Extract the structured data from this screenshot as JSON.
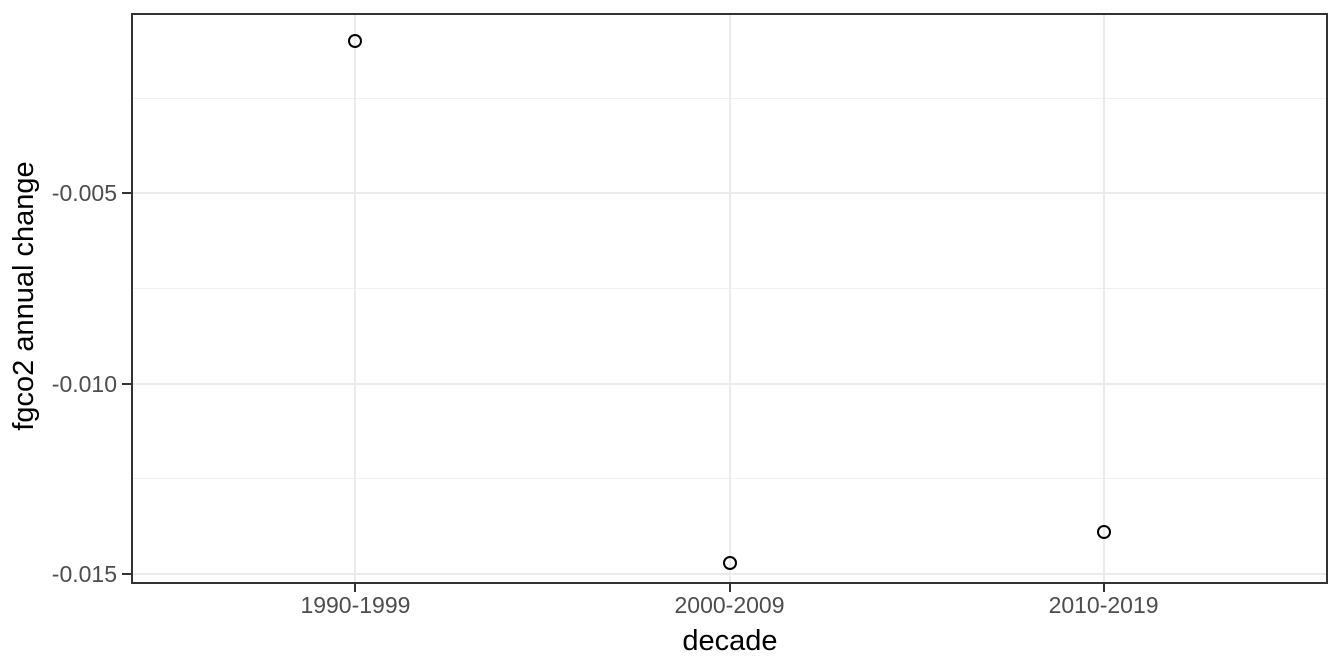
{
  "chart_data": {
    "type": "scatter",
    "title": "",
    "xlabel": "decade",
    "ylabel": "fgco2 annual change",
    "categories": [
      "1990-1999",
      "2000-2009",
      "2010-2019"
    ],
    "values": [
      -0.001,
      -0.0147,
      -0.0139
    ],
    "series": [
      {
        "name": "fgco2 annual change",
        "values": [
          -0.001,
          -0.0147,
          -0.0139
        ]
      }
    ],
    "yticks": [
      {
        "label": "-0.005",
        "value": -0.005
      },
      {
        "label": "-0.010",
        "value": -0.01
      },
      {
        "label": "-0.015",
        "value": -0.015
      }
    ],
    "minor_gridlines_y": [
      -0.0025,
      -0.0075,
      -0.0125
    ],
    "ylim": [
      -0.01526,
      -0.00026
    ],
    "grid": "horizontal major+minor, vertical major at each category",
    "legend": "none",
    "marker": "open-circle",
    "theme": "ggplot2 theme_bw",
    "colors": {
      "background": "#FFFFFF",
      "panel_background": "#FFFFFF",
      "panel_border": "#333333",
      "grid_major": "#EBEBEB",
      "grid_minor": "#F0F0F0",
      "tick_mark": "#333333",
      "tick_label_text": "#4D4D4D",
      "axis_title_text": "#000000",
      "point_stroke": "#000000"
    }
  }
}
